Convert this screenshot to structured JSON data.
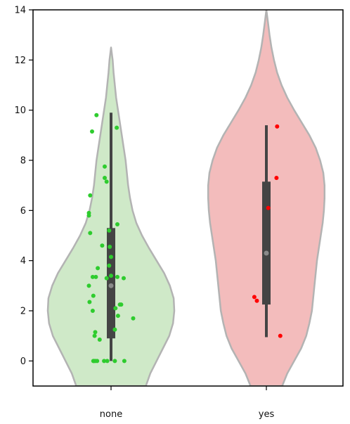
{
  "chart_data": {
    "type": "violin",
    "title": "",
    "xlabel": "",
    "ylabel": "",
    "ylim": [
      -1,
      14
    ],
    "yticks": [
      0,
      2,
      4,
      6,
      8,
      10,
      12,
      14
    ],
    "ytick_labels": [
      "0",
      "2",
      "4",
      "6",
      "8",
      "10",
      "12",
      "14"
    ],
    "grid": false,
    "legend": "none",
    "categories": [
      "none",
      "yes"
    ],
    "series": [
      {
        "category": "none",
        "fill_color": "#cfe9c8",
        "point_color": "#2ecc2e",
        "box": {
          "whisker_low": 0,
          "q1": 0.9,
          "median": 3.0,
          "q3": 5.3,
          "whisker_high": 9.9
        },
        "density": [
          {
            "y": -1.0,
            "width": 0.55
          },
          {
            "y": -0.5,
            "width": 0.62
          },
          {
            "y": 0.0,
            "width": 0.72
          },
          {
            "y": 0.5,
            "width": 0.82
          },
          {
            "y": 1.0,
            "width": 0.92
          },
          {
            "y": 1.5,
            "width": 0.98
          },
          {
            "y": 2.0,
            "width": 1.0
          },
          {
            "y": 2.5,
            "width": 0.99
          },
          {
            "y": 3.0,
            "width": 0.93
          },
          {
            "y": 3.5,
            "width": 0.84
          },
          {
            "y": 4.0,
            "width": 0.72
          },
          {
            "y": 4.5,
            "width": 0.6
          },
          {
            "y": 5.0,
            "width": 0.49
          },
          {
            "y": 5.5,
            "width": 0.4
          },
          {
            "y": 6.0,
            "width": 0.34
          },
          {
            "y": 6.5,
            "width": 0.3
          },
          {
            "y": 7.0,
            "width": 0.27
          },
          {
            "y": 7.5,
            "width": 0.25
          },
          {
            "y": 8.0,
            "width": 0.23
          },
          {
            "y": 8.5,
            "width": 0.2
          },
          {
            "y": 9.0,
            "width": 0.17
          },
          {
            "y": 9.5,
            "width": 0.14
          },
          {
            "y": 10.0,
            "width": 0.11
          },
          {
            "y": 10.5,
            "width": 0.08
          },
          {
            "y": 11.0,
            "width": 0.06
          },
          {
            "y": 11.5,
            "width": 0.04
          },
          {
            "y": 12.0,
            "width": 0.025
          },
          {
            "y": 12.5,
            "width": 0.0
          }
        ],
        "points": [
          {
            "x": -0.23,
            "y": 9.8
          },
          {
            "x": -0.3,
            "y": 9.15
          },
          {
            "x": 0.09,
            "y": 9.3
          },
          {
            "x": -0.1,
            "y": 7.75
          },
          {
            "x": -0.1,
            "y": 7.3
          },
          {
            "x": -0.07,
            "y": 7.15
          },
          {
            "x": -0.33,
            "y": 6.6
          },
          {
            "x": -0.35,
            "y": 5.9
          },
          {
            "x": -0.35,
            "y": 5.8
          },
          {
            "x": 0.1,
            "y": 5.45
          },
          {
            "x": -0.03,
            "y": 5.2
          },
          {
            "x": -0.33,
            "y": 5.1
          },
          {
            "x": -0.02,
            "y": 4.55
          },
          {
            "x": -0.14,
            "y": 4.6
          },
          {
            "x": 0.0,
            "y": 4.15
          },
          {
            "x": -0.03,
            "y": 3.8
          },
          {
            "x": -0.21,
            "y": 3.7
          },
          {
            "x": 0.0,
            "y": 3.4
          },
          {
            "x": -0.29,
            "y": 3.35
          },
          {
            "x": -0.24,
            "y": 3.35
          },
          {
            "x": 0.1,
            "y": 3.35
          },
          {
            "x": 0.2,
            "y": 3.3
          },
          {
            "x": -0.07,
            "y": 3.3
          },
          {
            "x": -0.35,
            "y": 3.0
          },
          {
            "x": -0.28,
            "y": 2.6
          },
          {
            "x": -0.34,
            "y": 2.35
          },
          {
            "x": 0.14,
            "y": 2.25
          },
          {
            "x": 0.16,
            "y": 2.25
          },
          {
            "x": 0.07,
            "y": 2.1
          },
          {
            "x": -0.29,
            "y": 2.0
          },
          {
            "x": 0.11,
            "y": 1.8
          },
          {
            "x": 0.35,
            "y": 1.7
          },
          {
            "x": 0.06,
            "y": 1.25
          },
          {
            "x": -0.25,
            "y": 1.15
          },
          {
            "x": -0.26,
            "y": 1.0
          },
          {
            "x": -0.18,
            "y": 0.85
          },
          {
            "x": -0.28,
            "y": 0.0
          },
          {
            "x": -0.27,
            "y": 0.0
          },
          {
            "x": -0.25,
            "y": 0.0
          },
          {
            "x": -0.22,
            "y": 0.0
          },
          {
            "x": -0.11,
            "y": 0.0
          },
          {
            "x": -0.06,
            "y": 0.0
          },
          {
            "x": 0.06,
            "y": 0.0
          },
          {
            "x": 0.21,
            "y": 0.0
          }
        ]
      },
      {
        "category": "yes",
        "fill_color": "#f3bcbc",
        "point_color": "#ff0000",
        "box": {
          "whisker_low": 0.95,
          "q1": 2.25,
          "median": 4.3,
          "q3": 7.15,
          "whisker_high": 9.4
        },
        "density": [
          {
            "y": -1.0,
            "width": 0.25
          },
          {
            "y": -0.5,
            "width": 0.33
          },
          {
            "y": 0.0,
            "width": 0.44
          },
          {
            "y": 0.5,
            "width": 0.55
          },
          {
            "y": 1.0,
            "width": 0.63
          },
          {
            "y": 1.5,
            "width": 0.68
          },
          {
            "y": 2.0,
            "width": 0.72
          },
          {
            "y": 2.5,
            "width": 0.74
          },
          {
            "y": 3.0,
            "width": 0.76
          },
          {
            "y": 3.5,
            "width": 0.78
          },
          {
            "y": 4.0,
            "width": 0.8
          },
          {
            "y": 4.5,
            "width": 0.83
          },
          {
            "y": 5.0,
            "width": 0.86
          },
          {
            "y": 5.5,
            "width": 0.89
          },
          {
            "y": 6.0,
            "width": 0.91
          },
          {
            "y": 6.5,
            "width": 0.92
          },
          {
            "y": 7.0,
            "width": 0.92
          },
          {
            "y": 7.5,
            "width": 0.9
          },
          {
            "y": 8.0,
            "width": 0.85
          },
          {
            "y": 8.5,
            "width": 0.78
          },
          {
            "y": 9.0,
            "width": 0.68
          },
          {
            "y": 9.5,
            "width": 0.56
          },
          {
            "y": 10.0,
            "width": 0.44
          },
          {
            "y": 10.5,
            "width": 0.33
          },
          {
            "y": 11.0,
            "width": 0.24
          },
          {
            "y": 11.5,
            "width": 0.17
          },
          {
            "y": 12.0,
            "width": 0.12
          },
          {
            "y": 12.5,
            "width": 0.08
          },
          {
            "y": 13.0,
            "width": 0.05
          },
          {
            "y": 13.5,
            "width": 0.025
          },
          {
            "y": 14.0,
            "width": 0.0
          }
        ],
        "points": [
          {
            "x": 0.17,
            "y": 9.35
          },
          {
            "x": 0.16,
            "y": 7.3
          },
          {
            "x": 0.03,
            "y": 6.1
          },
          {
            "x": -0.19,
            "y": 2.55
          },
          {
            "x": -0.15,
            "y": 2.4
          },
          {
            "x": 0.22,
            "y": 1.0
          }
        ]
      }
    ]
  }
}
